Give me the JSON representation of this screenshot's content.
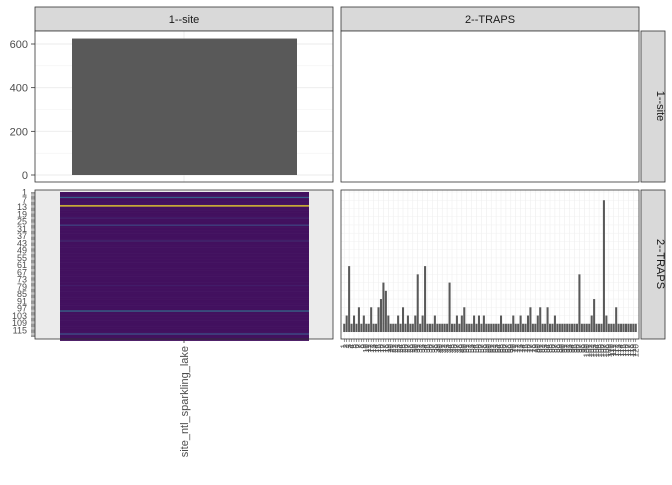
{
  "chart_data": [
    {
      "type": "bar",
      "facet_row": "1--site",
      "facet_col": "1--site",
      "categories": [
        "site_ntl_sparkling_lake"
      ],
      "values": [
        625
      ],
      "ylim": [
        0,
        650
      ],
      "yticks": [
        0,
        200,
        400,
        600
      ],
      "xlabel": "",
      "ylabel": "",
      "grid": true
    },
    {
      "type": "empty",
      "facet_row": "1--site",
      "facet_col": "2--TRAPS"
    },
    {
      "type": "heatmap",
      "facet_row": "2--TRAPS",
      "facet_col": "1--site",
      "x_categories": [
        "site_ntl_sparkling_lake"
      ],
      "row_count": 120,
      "palette": "viridis",
      "values": [
        0.05,
        0.05,
        0.05,
        0.05,
        0.3,
        0.05,
        0.05,
        0.05,
        0.05,
        0.05,
        0.05,
        1.0,
        0.05,
        0.05,
        0.05,
        0.05,
        0.05,
        0.05,
        0.05,
        0.05,
        0.05,
        0.1,
        0.05,
        0.05,
        0.05,
        0.05,
        0.05,
        0.2,
        0.05,
        0.05,
        0.05,
        0.05,
        0.05,
        0.05,
        0.05,
        0.05,
        0.05,
        0.05,
        0.05,
        0.05,
        0.12,
        0.05,
        0.05,
        0.05,
        0.05,
        0.05,
        0.05,
        0.05,
        0.05,
        0.05,
        0.05,
        0.05,
        0.05,
        0.05,
        0.05,
        0.05,
        0.05,
        0.05,
        0.05,
        0.05,
        0.05,
        0.05,
        0.05,
        0.05,
        0.05,
        0.05,
        0.05,
        0.05,
        0.05,
        0.05,
        0.05,
        0.05,
        0.05,
        0.05,
        0.05,
        0.05,
        0.05,
        0.08,
        0.05,
        0.05,
        0.05,
        0.05,
        0.05,
        0.05,
        0.05,
        0.05,
        0.05,
        0.05,
        0.05,
        0.05,
        0.05,
        0.05,
        0.05,
        0.05,
        0.05,
        0.05,
        0.05,
        0.05,
        0.35,
        0.05,
        0.05,
        0.05,
        0.05,
        0.05,
        0.05,
        0.05,
        0.05,
        0.05,
        0.05,
        0.05,
        0.05,
        0.05,
        0.05,
        0.05,
        0.05,
        0.05,
        0.05,
        0.25,
        0.05,
        0.05,
        0.05,
        0.05,
        0.05
      ]
    },
    {
      "type": "bar",
      "facet_row": "2--TRAPS",
      "facet_col": "2--TRAPS",
      "x_count": 120,
      "values": [
        1,
        2,
        8,
        1,
        2,
        1,
        3,
        1,
        2,
        1,
        1,
        3,
        1,
        1,
        3,
        4,
        6,
        5,
        2,
        1,
        1,
        1,
        2,
        1,
        3,
        1,
        2,
        1,
        1,
        2,
        7,
        1,
        2,
        8,
        1,
        1,
        1,
        2,
        1,
        1,
        1,
        1,
        1,
        6,
        1,
        1,
        2,
        1,
        2,
        3,
        1,
        1,
        1,
        2,
        1,
        2,
        1,
        2,
        1,
        1,
        1,
        1,
        1,
        1,
        2,
        1,
        1,
        1,
        1,
        2,
        1,
        1,
        2,
        1,
        1,
        2,
        3,
        1,
        1,
        2,
        3,
        1,
        1,
        3,
        1,
        1,
        2,
        1,
        1,
        1,
        1,
        1,
        1,
        1,
        1,
        1,
        7,
        1,
        1,
        1,
        1,
        2,
        4,
        1,
        1,
        1,
        16,
        2,
        1,
        1,
        1,
        3,
        1,
        1,
        1,
        1,
        1,
        1,
        1,
        1
      ]
    }
  ],
  "strips": {
    "top": [
      "1--site",
      "2--TRAPS"
    ],
    "right": [
      "1--site",
      "2--TRAPS"
    ]
  },
  "x_tick_label": "site_ntl_sparkling_lake",
  "trap_tick_texts": [
    "1",
    "2",
    "3",
    "4",
    "5",
    "6",
    "7",
    "8",
    "9",
    "10",
    "11",
    "12",
    "13",
    "14",
    "15",
    "16",
    "17",
    "18",
    "19",
    "20",
    "21",
    "22",
    "23",
    "24",
    "25",
    "26",
    "27",
    "28",
    "29",
    "30",
    "31",
    "32",
    "33",
    "34",
    "35",
    "36",
    "37",
    "38",
    "39",
    "40",
    "41",
    "42",
    "43",
    "44",
    "45",
    "46",
    "47",
    "48",
    "49",
    "50",
    "51",
    "52",
    "53",
    "54",
    "55",
    "56",
    "57",
    "58",
    "59",
    "60",
    "61",
    "62",
    "63",
    "64",
    "65",
    "66",
    "67",
    "68",
    "69",
    "70",
    "71",
    "72",
    "73",
    "74",
    "75",
    "76",
    "77",
    "78",
    "79",
    "80",
    "81",
    "82",
    "83",
    "84",
    "85",
    "86",
    "87",
    "88",
    "89",
    "90",
    "91",
    "92",
    "93",
    "94",
    "95",
    "96",
    "97",
    "98",
    "99",
    "100",
    "101",
    "102",
    "103",
    "104",
    "105",
    "106",
    "107",
    "108",
    "109",
    "110",
    "111",
    "112",
    "113",
    "114",
    "115",
    "116",
    "117",
    "118",
    "119",
    "120"
  ]
}
